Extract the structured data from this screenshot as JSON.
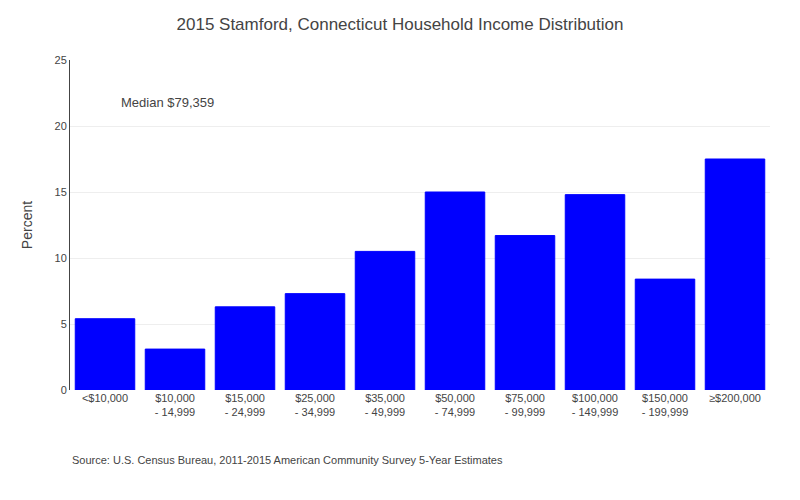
{
  "chart_data": {
    "type": "bar",
    "title": "2015 Stamford, Connecticut Household Income Distribution",
    "ylabel": "Percent",
    "categories": [
      "<$10,000",
      "$10,000\n- 14,999",
      "$15,000\n- 24,999",
      "$25,000\n- 34,999",
      "$35,000\n- 49,999",
      "$50,000\n- 74,999",
      "$75,000\n- 99,999",
      "$100,000\n- 149,999",
      "$150,000\n- 199,999",
      "≥$200,000"
    ],
    "values": [
      5.4,
      3.1,
      6.3,
      7.3,
      10.5,
      15.0,
      11.7,
      14.8,
      8.4,
      17.5
    ],
    "color": "#0000ff",
    "ylim": [
      0,
      25
    ],
    "yticks": [
      0,
      5,
      10,
      15,
      20,
      25
    ],
    "grid": true,
    "annotation": "Median $79,359",
    "source": "Source: U.S. Census Bureau, 2011-2015 American Community Survey 5-Year Estimates"
  }
}
